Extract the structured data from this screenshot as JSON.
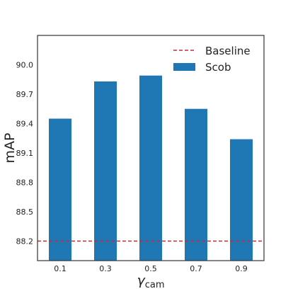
{
  "chart_data": {
    "type": "bar",
    "categories": [
      "0.1",
      "0.3",
      "0.5",
      "0.7",
      "0.9"
    ],
    "series": [
      {
        "name": "Scob",
        "values": [
          89.45,
          89.83,
          89.89,
          89.55,
          89.24
        ],
        "color": "#1f77b4"
      }
    ],
    "baseline": {
      "name": "Baseline",
      "value": 88.2,
      "color": "#d62728",
      "style": "dashed"
    },
    "xlabel": {
      "symbol": "γ",
      "subscript": "cam"
    },
    "ylabel": "mAP",
    "ylim": [
      88.0,
      90.3
    ],
    "yticks": [
      "88.2",
      "88.5",
      "88.8",
      "89.1",
      "89.4",
      "89.7",
      "90.0"
    ],
    "grid": false,
    "legend_position": "top-right"
  }
}
